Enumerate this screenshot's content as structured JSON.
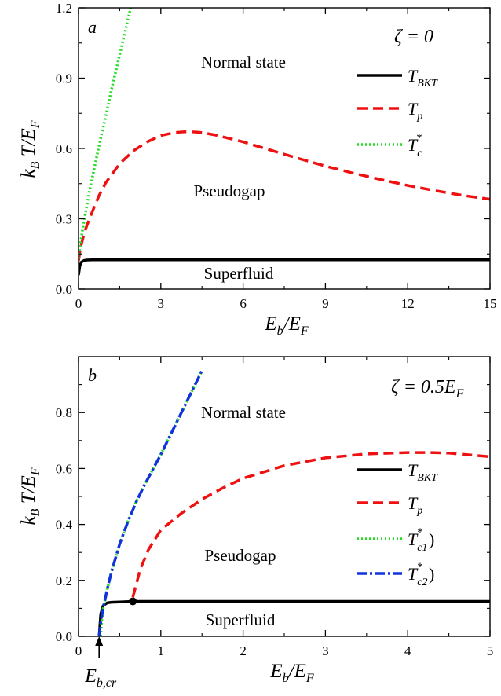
{
  "chart_data": [
    {
      "panel": "a",
      "type": "line",
      "parameter": "ζ = 0",
      "xlabel": "E_b/E_F",
      "ylabel": "k_B T/E_F",
      "xlim": [
        0,
        15
      ],
      "ylim": [
        0,
        1.2
      ],
      "xticks": [
        0,
        3,
        6,
        9,
        12,
        15
      ],
      "xtick_labels": [
        "0",
        "3",
        "6",
        "9",
        "12",
        "15"
      ],
      "yticks": [
        0.0,
        0.3,
        0.6,
        0.9,
        1.2
      ],
      "ytick_labels": [
        "0.0",
        "0.3",
        "0.6",
        "0.9",
        "1.2"
      ],
      "regions": [
        "Normal state",
        "Pseudogap",
        "Superfluid"
      ],
      "legend_position": "right",
      "series": [
        {
          "name": "T_BKT",
          "color": "#000000",
          "style": "solid",
          "x": [
            0.0,
            0.05,
            0.1,
            0.2,
            0.3,
            0.5,
            1,
            2,
            5,
            10,
            15
          ],
          "y": [
            0.06,
            0.1,
            0.115,
            0.122,
            0.124,
            0.125,
            0.125,
            0.125,
            0.125,
            0.125,
            0.125
          ]
        },
        {
          "name": "T_p",
          "color": "#ee1111",
          "style": "dashed",
          "x": [
            0.0,
            0.05,
            0.1,
            0.2,
            0.3,
            0.5,
            0.75,
            1.0,
            1.5,
            2.0,
            2.5,
            3.0,
            3.5,
            4.0,
            4.5,
            5.0,
            6.0,
            7.0,
            8.0,
            9.0,
            10.0,
            11.0,
            12.0,
            13.0,
            14.0,
            15.0
          ],
          "y": [
            0.12,
            0.16,
            0.19,
            0.235,
            0.27,
            0.33,
            0.4,
            0.455,
            0.535,
            0.59,
            0.628,
            0.655,
            0.668,
            0.672,
            0.668,
            0.657,
            0.628,
            0.593,
            0.558,
            0.525,
            0.495,
            0.468,
            0.442,
            0.42,
            0.4,
            0.383
          ]
        },
        {
          "name": "T_c^*",
          "color": "#22dd22",
          "style": "dotted",
          "x": [
            0.0,
            0.1,
            0.2,
            0.4,
            0.6,
            0.8,
            1.0,
            1.2,
            1.4,
            1.6,
            1.8,
            1.9
          ],
          "y": [
            0.13,
            0.22,
            0.29,
            0.42,
            0.53,
            0.64,
            0.74,
            0.85,
            0.95,
            1.05,
            1.15,
            1.2
          ]
        }
      ]
    },
    {
      "panel": "b",
      "type": "line",
      "parameter": "ζ = 0.5E_F",
      "xlabel": "E_b/E_F",
      "ylabel": "k_B T/E_F",
      "xlim": [
        0,
        5
      ],
      "ylim": [
        0,
        1.0
      ],
      "xticks": [
        0,
        1,
        2,
        3,
        4,
        5
      ],
      "xtick_labels": [
        "0",
        "1",
        "2",
        "3",
        "4",
        "5"
      ],
      "yticks": [
        0.0,
        0.2,
        0.4,
        0.6,
        0.8
      ],
      "ytick_labels": [
        "0.0",
        "0.2",
        "0.4",
        "0.6",
        "0.8"
      ],
      "regions": [
        "Normal state",
        "Pseudogap",
        "Superfluid"
      ],
      "annotation": "E_b,cr",
      "critical_point": {
        "x": 0.66,
        "y": 0.125
      },
      "critical_energy": 0.25,
      "legend_position": "right",
      "series": [
        {
          "name": "T_BKT",
          "color": "#000000",
          "style": "solid",
          "x": [
            0.25,
            0.27,
            0.3,
            0.35,
            0.4,
            0.5,
            0.66,
            1.0,
            2.0,
            3.0,
            4.0,
            5.0
          ],
          "y": [
            0.0,
            0.08,
            0.11,
            0.12,
            0.122,
            0.123,
            0.125,
            0.125,
            0.125,
            0.125,
            0.125,
            0.125
          ]
        },
        {
          "name": "T_p",
          "color": "#ee1111",
          "style": "dashed",
          "x": [
            0.66,
            0.75,
            0.85,
            1.0,
            1.25,
            1.5,
            1.75,
            2.0,
            2.5,
            3.0,
            3.5,
            4.0,
            4.25,
            4.5,
            5.0
          ],
          "y": [
            0.14,
            0.24,
            0.31,
            0.38,
            0.44,
            0.49,
            0.53,
            0.565,
            0.61,
            0.638,
            0.652,
            0.657,
            0.657,
            0.655,
            0.642
          ]
        },
        {
          "name": "T_c1^*)",
          "color": "#22dd22",
          "style": "dotted",
          "x": [
            0.27,
            0.28,
            0.3,
            0.35,
            0.4,
            0.5,
            0.6,
            0.7,
            0.8,
            1.0,
            1.2,
            1.4,
            1.5
          ],
          "y": [
            0.0,
            0.05,
            0.1,
            0.17,
            0.23,
            0.33,
            0.41,
            0.48,
            0.54,
            0.65,
            0.77,
            0.89,
            0.95
          ]
        },
        {
          "name": "T_c2^*)",
          "color": "#1133dd",
          "style": "dashdot",
          "x": [
            0.25,
            0.27,
            0.3,
            0.35,
            0.4,
            0.5,
            0.6,
            0.7,
            0.8,
            1.0,
            1.2,
            1.4,
            1.5
          ],
          "y": [
            0.0,
            0.05,
            0.1,
            0.17,
            0.23,
            0.33,
            0.41,
            0.48,
            0.54,
            0.65,
            0.77,
            0.89,
            0.95
          ]
        }
      ]
    }
  ]
}
